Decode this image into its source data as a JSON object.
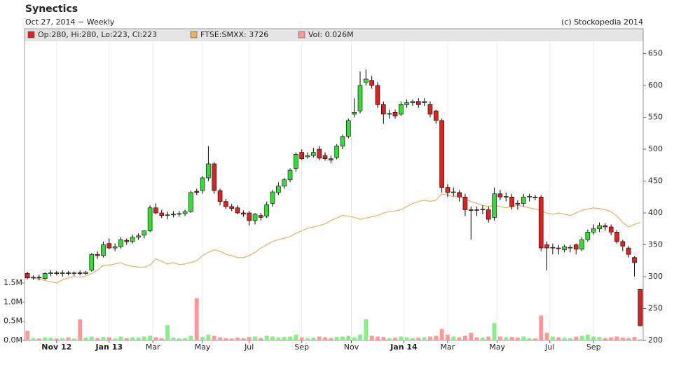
{
  "chart_data": {
    "type": "candlestick",
    "title": "Synectics",
    "subtitle": "Oct 27, 2014 − Weekly",
    "source": "(c) Stockopedia 2014",
    "candle_name": "Op:280, Hi:280, Lo:223, Cl:223",
    "up_color": "#33dd33",
    "down_color": "#dd2222",
    "x": [
      0,
      1,
      2,
      3,
      4,
      5,
      6,
      7,
      8,
      9,
      10,
      11,
      12,
      13,
      14,
      15,
      16,
      17,
      18,
      19,
      20,
      21,
      22,
      23,
      24,
      25,
      26,
      27,
      28,
      29,
      30,
      31,
      32,
      33,
      34,
      35,
      36,
      37,
      38,
      39,
      40,
      41,
      42,
      43,
      44,
      45,
      46,
      47,
      48,
      49,
      50,
      51,
      52,
      53,
      54,
      55,
      56,
      57,
      58,
      59,
      60,
      61,
      62,
      63,
      64,
      65,
      66,
      67,
      68,
      69,
      70,
      71,
      72,
      73,
      74,
      75,
      76,
      77,
      78,
      79,
      80,
      81,
      82,
      83,
      84,
      85,
      86,
      87,
      88,
      89,
      90,
      91,
      92,
      93,
      94,
      95,
      96,
      97,
      98,
      99,
      100,
      101,
      102,
      103,
      104,
      105
    ],
    "open": [
      305,
      298,
      299,
      297,
      305,
      306,
      305,
      306,
      305,
      306,
      305,
      310,
      335,
      333,
      352,
      345,
      347,
      357,
      355,
      362,
      365,
      372,
      408,
      400,
      396,
      397,
      398,
      399,
      402,
      434,
      435,
      455,
      477,
      435,
      418,
      410,
      408,
      400,
      400,
      388,
      396,
      395,
      415,
      432,
      442,
      452,
      470,
      495,
      488,
      490,
      500,
      490,
      485,
      487,
      505,
      520,
      555,
      560,
      605,
      608,
      600,
      570,
      555,
      558,
      555,
      570,
      573,
      575,
      573,
      570,
      560,
      545,
      440,
      432,
      432,
      425,
      405,
      405,
      405,
      405,
      393,
      430,
      425,
      425,
      415,
      415,
      425,
      425,
      425,
      350,
      345,
      345,
      342,
      345,
      350,
      343,
      358,
      370,
      375,
      380,
      378,
      370,
      355,
      345,
      330,
      280
    ],
    "high": [
      308,
      302,
      303,
      307,
      310,
      309,
      310,
      309,
      308,
      310,
      309,
      337,
      340,
      355,
      360,
      352,
      362,
      360,
      366,
      368,
      372,
      412,
      415,
      405,
      402,
      403,
      403,
      405,
      435,
      438,
      458,
      505,
      480,
      438,
      422,
      414,
      412,
      404,
      403,
      400,
      400,
      418,
      436,
      448,
      455,
      470,
      495,
      500,
      495,
      502,
      505,
      495,
      490,
      508,
      523,
      548,
      580,
      622,
      625,
      615,
      605,
      575,
      562,
      562,
      575,
      578,
      578,
      580,
      580,
      575,
      562,
      548,
      445,
      440,
      436,
      430,
      410,
      410,
      412,
      410,
      440,
      436,
      432,
      430,
      420,
      430,
      430,
      428,
      428,
      355,
      352,
      350,
      350,
      350,
      352,
      362,
      374,
      382,
      385,
      384,
      382,
      373,
      358,
      348,
      332,
      280
    ],
    "low": [
      296,
      295,
      294,
      295,
      301,
      302,
      300,
      302,
      301,
      302,
      303,
      308,
      328,
      330,
      343,
      340,
      344,
      350,
      352,
      358,
      360,
      370,
      398,
      392,
      390,
      393,
      394,
      395,
      400,
      428,
      430,
      450,
      430,
      412,
      406,
      403,
      398,
      394,
      380,
      382,
      388,
      392,
      410,
      428,
      438,
      448,
      465,
      483,
      485,
      487,
      483,
      482,
      478,
      484,
      500,
      517,
      550,
      556,
      600,
      595,
      565,
      540,
      548,
      548,
      552,
      565,
      568,
      565,
      568,
      550,
      540,
      432,
      425,
      426,
      418,
      395,
      358,
      395,
      398,
      385,
      388,
      420,
      418,
      405,
      405,
      410,
      418,
      420,
      340,
      310,
      335,
      335,
      338,
      338,
      335,
      340,
      355,
      366,
      370,
      372,
      365,
      352,
      340,
      330,
      300,
      223
    ],
    "close": [
      298,
      299,
      298,
      305,
      306,
      305,
      306,
      305,
      306,
      305,
      307,
      335,
      333,
      350,
      345,
      347,
      358,
      355,
      362,
      364,
      372,
      408,
      400,
      396,
      397,
      398,
      399,
      402,
      432,
      432,
      455,
      477,
      435,
      418,
      410,
      407,
      400,
      398,
      388,
      398,
      393,
      413,
      433,
      442,
      452,
      467,
      492,
      485,
      490,
      495,
      486,
      485,
      483,
      505,
      520,
      545,
      558,
      600,
      610,
      600,
      570,
      555,
      556,
      552,
      570,
      573,
      575,
      570,
      575,
      555,
      545,
      440,
      432,
      433,
      425,
      405,
      404,
      404,
      406,
      390,
      430,
      425,
      426,
      410,
      414,
      425,
      426,
      424,
      345,
      345,
      346,
      344,
      347,
      346,
      343,
      358,
      370,
      375,
      380,
      378,
      370,
      355,
      348,
      335,
      322,
      223
    ],
    "volume": {
      "name": "Vol: 0.026M",
      "axis": "y2",
      "color": "#ff9999",
      "up_color": "#88ee88",
      "down_color": "#ff9999",
      "flat_color": "#aaaaaa",
      "values": [
        0.25,
        0.06,
        0.05,
        0.08,
        0.07,
        0.05,
        0.06,
        0.08,
        0.05,
        0.55,
        0.07,
        0.1,
        0.06,
        0.09,
        0.08,
        0.05,
        0.1,
        0.06,
        0.08,
        0.07,
        0.1,
        0.12,
        0.08,
        0.06,
        0.4,
        0.07,
        0.05,
        0.06,
        0.12,
        1.1,
        0.09,
        0.15,
        0.12,
        0.08,
        0.06,
        0.05,
        0.07,
        0.06,
        0.09,
        0.1,
        0.06,
        0.12,
        0.1,
        0.08,
        0.09,
        0.1,
        0.15,
        0.08,
        0.06,
        0.07,
        0.1,
        0.08,
        0.06,
        0.09,
        0.1,
        0.12,
        0.08,
        0.15,
        0.55,
        0.12,
        0.1,
        0.09,
        0.06,
        0.07,
        0.1,
        0.08,
        0.06,
        0.07,
        0.08,
        0.1,
        0.12,
        0.3,
        0.15,
        0.1,
        0.08,
        0.12,
        0.2,
        0.08,
        0.07,
        0.1,
        0.45,
        0.1,
        0.08,
        0.09,
        0.07,
        0.1,
        0.06,
        0.05,
        0.65,
        0.2,
        0.1,
        0.08,
        0.07,
        0.06,
        0.1,
        0.12,
        0.15,
        0.1,
        0.09,
        0.06,
        0.08,
        0.1,
        0.07,
        0.06,
        0.09,
        0.026
      ]
    },
    "series": [
      {
        "name": "FTSE:SMXX: 3726",
        "color": "#e6b060",
        "values": [
          300,
          298,
          296,
          294,
          292,
          290,
          295,
          298,
          300,
          299,
          301,
          305,
          310,
          318,
          318,
          320,
          322,
          318,
          316,
          315,
          315,
          318,
          328,
          324,
          320,
          322,
          319,
          320,
          322,
          325,
          333,
          338,
          342,
          340,
          335,
          333,
          330,
          330,
          333,
          338,
          345,
          350,
          355,
          358,
          360,
          363,
          368,
          372,
          376,
          378,
          380,
          383,
          388,
          392,
          396,
          395,
          393,
          390,
          392,
          394,
          396,
          400,
          402,
          403,
          405,
          410,
          415,
          418,
          420,
          418,
          420,
          430,
          428,
          425,
          428,
          422,
          418,
          415,
          412,
          410,
          412,
          410,
          408,
          410,
          412,
          410,
          408,
          406,
          404,
          400,
          398,
          400,
          398,
          396,
          400,
          404,
          406,
          408,
          407,
          405,
          402,
          395,
          385,
          378,
          382,
          385
        ]
      }
    ],
    "xlim": [
      -0.5,
      105.5
    ],
    "xticks": [
      {
        "value": 5,
        "label": "Nov 12"
      },
      {
        "value": 14,
        "label": "Jan 13"
      },
      {
        "value": 21.5,
        "label": "Mar"
      },
      {
        "value": 30,
        "label": "May"
      },
      {
        "value": 38,
        "label": "Jul"
      },
      {
        "value": 47,
        "label": "Sep"
      },
      {
        "value": 55.5,
        "label": "Nov"
      },
      {
        "value": 64.5,
        "label": "Jan 14"
      },
      {
        "value": 72,
        "label": "Mar"
      },
      {
        "value": 80.5,
        "label": "May"
      },
      {
        "value": 89.5,
        "label": "Jul"
      },
      {
        "value": 97,
        "label": "Sep"
      }
    ],
    "ylim": [
      200,
      666
    ],
    "yticks": [
      200,
      250,
      300,
      350,
      400,
      450,
      500,
      550,
      600,
      650
    ],
    "y2lim": [
      0,
      7.76
    ],
    "y2ticks": [
      {
        "value": 0,
        "label": "0.0M"
      },
      {
        "value": 0.5,
        "label": "0.5M"
      },
      {
        "value": 1,
        "label": "1.0M"
      },
      {
        "value": 1.5,
        "label": "1.5M"
      }
    ],
    "grid": true
  }
}
